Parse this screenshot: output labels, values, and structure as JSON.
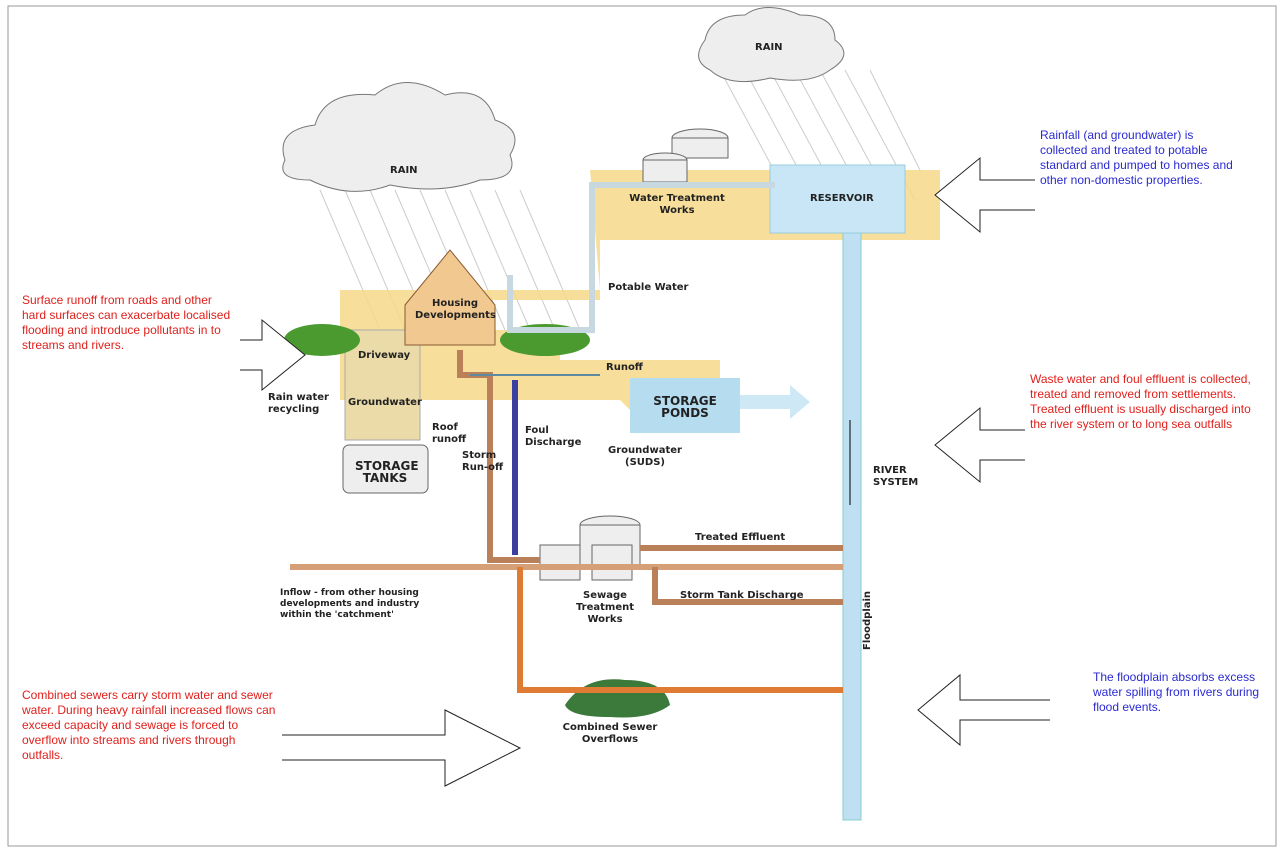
{
  "labels": {
    "rain_left": "RAIN",
    "rain_right": "RAIN",
    "reservoir": "RESERVOIR",
    "water_treatment": "Water Treatment Works",
    "housing": "Housing Developments",
    "potable": "Potable Water",
    "driveway": "Driveway",
    "groundwater": "Groundwater",
    "rain_recycling": "Rain water recycling",
    "roof_runoff": "Roof runoff",
    "storage_tanks": "STORAGE TANKS",
    "runoff": "Runoff",
    "storage_ponds": "STORAGE PONDS",
    "foul": "Foul Discharge",
    "storm": "Storm Run-off",
    "suds": "Groundwater (SUDS)",
    "river": "RIVER SYSTEM",
    "treated": "Treated Effluent",
    "storm_tank": "Storm Tank Discharge",
    "sewage": "Sewage Treatment Works",
    "inflow": "Inflow - from other housing developments and industry within the 'catchment'",
    "floodplain": "Floodplain",
    "cso": "Combined Sewer Overflows"
  },
  "notes": {
    "rainfall": "Rainfall (and groundwater) is collected and treated to potable standard and pumped to homes and other non-domestic properties.",
    "surface": "Surface runoff from roads and other hard surfaces can exacerbate localised flooding and introduce pollutants in to streams and rivers.",
    "waste": "Waste water and foul effluent is collected, treated and removed from settlements. Treated effluent is usually discharged into the river system or to long sea outfalls",
    "floodplain": "The floodplain absorbs excess water spilling from rivers during flood events.",
    "combined": "Combined sewers carry storm water and sewer water.  During heavy rainfall increased flows can exceed capacity and sewage is forced to overflow into streams and rivers through outfalls."
  }
}
